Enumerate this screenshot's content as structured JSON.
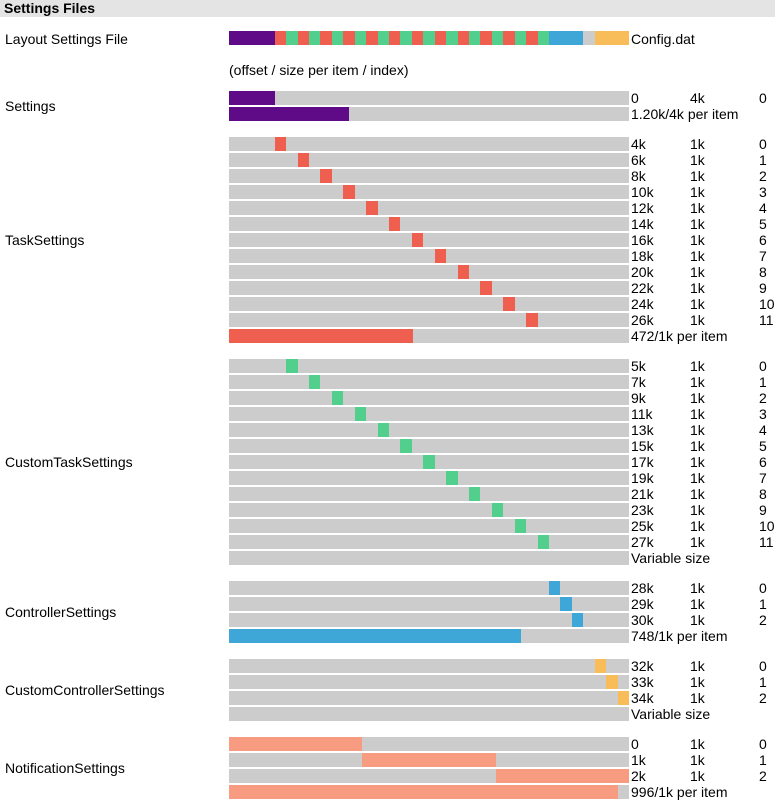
{
  "header": {
    "title": "Settings Files"
  },
  "layout_file": {
    "label": "Layout Settings File",
    "file_name": "Config.dat",
    "legend": "(offset / size per item / index)"
  },
  "colors": {
    "track": "#cccccc",
    "settings": "#5f0a87",
    "task": "#ef5f50",
    "custom_task": "#52cf8c",
    "controller": "#3fa7d8",
    "custom_controller": "#f8bd59",
    "notification": "#f79b81",
    "unused": "#cccccc"
  },
  "file_map": {
    "total_k": 35,
    "blocks": [
      {
        "start": 0,
        "size": 4,
        "color": "settings"
      },
      {
        "start": 4,
        "size": 1,
        "color": "task"
      },
      {
        "start": 5,
        "size": 1,
        "color": "custom_task"
      },
      {
        "start": 6,
        "size": 1,
        "color": "task"
      },
      {
        "start": 7,
        "size": 1,
        "color": "custom_task"
      },
      {
        "start": 8,
        "size": 1,
        "color": "task"
      },
      {
        "start": 9,
        "size": 1,
        "color": "custom_task"
      },
      {
        "start": 10,
        "size": 1,
        "color": "task"
      },
      {
        "start": 11,
        "size": 1,
        "color": "custom_task"
      },
      {
        "start": 12,
        "size": 1,
        "color": "task"
      },
      {
        "start": 13,
        "size": 1,
        "color": "custom_task"
      },
      {
        "start": 14,
        "size": 1,
        "color": "task"
      },
      {
        "start": 15,
        "size": 1,
        "color": "custom_task"
      },
      {
        "start": 16,
        "size": 1,
        "color": "task"
      },
      {
        "start": 17,
        "size": 1,
        "color": "custom_task"
      },
      {
        "start": 18,
        "size": 1,
        "color": "task"
      },
      {
        "start": 19,
        "size": 1,
        "color": "custom_task"
      },
      {
        "start": 20,
        "size": 1,
        "color": "task"
      },
      {
        "start": 21,
        "size": 1,
        "color": "custom_task"
      },
      {
        "start": 22,
        "size": 1,
        "color": "task"
      },
      {
        "start": 23,
        "size": 1,
        "color": "custom_task"
      },
      {
        "start": 24,
        "size": 1,
        "color": "task"
      },
      {
        "start": 25,
        "size": 1,
        "color": "custom_task"
      },
      {
        "start": 26,
        "size": 1,
        "color": "task"
      },
      {
        "start": 27,
        "size": 1,
        "color": "custom_task"
      },
      {
        "start": 28,
        "size": 1,
        "color": "controller"
      },
      {
        "start": 29,
        "size": 1,
        "color": "controller"
      },
      {
        "start": 30,
        "size": 1,
        "color": "controller"
      },
      {
        "start": 31,
        "size": 1,
        "color": "unused"
      },
      {
        "start": 32,
        "size": 3,
        "color": "custom_controller"
      }
    ]
  },
  "sections": [
    {
      "id": "settings",
      "label": "Settings",
      "color": "settings",
      "items": [
        {
          "start": 0,
          "size": 4,
          "offset": "0",
          "size_text": "4k",
          "index": "0"
        }
      ],
      "usage": {
        "used": 1.2,
        "total": 4,
        "text": "1.20k/4k per item"
      }
    },
    {
      "id": "task",
      "label": "TaskSettings",
      "color": "task",
      "items": [
        {
          "start": 4,
          "size": 1,
          "offset": "4k",
          "size_text": "1k",
          "index": "0"
        },
        {
          "start": 6,
          "size": 1,
          "offset": "6k",
          "size_text": "1k",
          "index": "1"
        },
        {
          "start": 8,
          "size": 1,
          "offset": "8k",
          "size_text": "1k",
          "index": "2"
        },
        {
          "start": 10,
          "size": 1,
          "offset": "10k",
          "size_text": "1k",
          "index": "3"
        },
        {
          "start": 12,
          "size": 1,
          "offset": "12k",
          "size_text": "1k",
          "index": "4"
        },
        {
          "start": 14,
          "size": 1,
          "offset": "14k",
          "size_text": "1k",
          "index": "5"
        },
        {
          "start": 16,
          "size": 1,
          "offset": "16k",
          "size_text": "1k",
          "index": "6"
        },
        {
          "start": 18,
          "size": 1,
          "offset": "18k",
          "size_text": "1k",
          "index": "7"
        },
        {
          "start": 20,
          "size": 1,
          "offset": "20k",
          "size_text": "1k",
          "index": "8"
        },
        {
          "start": 22,
          "size": 1,
          "offset": "22k",
          "size_text": "1k",
          "index": "9"
        },
        {
          "start": 24,
          "size": 1,
          "offset": "24k",
          "size_text": "1k",
          "index": "10"
        },
        {
          "start": 26,
          "size": 1,
          "offset": "26k",
          "size_text": "1k",
          "index": "11"
        }
      ],
      "usage": {
        "used": 0.461,
        "total": 1,
        "text": "472/1k per item"
      }
    },
    {
      "id": "custom_task",
      "label": "CustomTaskSettings",
      "color": "custom_task",
      "items": [
        {
          "start": 5,
          "size": 1,
          "offset": "5k",
          "size_text": "1k",
          "index": "0"
        },
        {
          "start": 7,
          "size": 1,
          "offset": "7k",
          "size_text": "1k",
          "index": "1"
        },
        {
          "start": 9,
          "size": 1,
          "offset": "9k",
          "size_text": "1k",
          "index": "2"
        },
        {
          "start": 11,
          "size": 1,
          "offset": "11k",
          "size_text": "1k",
          "index": "3"
        },
        {
          "start": 13,
          "size": 1,
          "offset": "13k",
          "size_text": "1k",
          "index": "4"
        },
        {
          "start": 15,
          "size": 1,
          "offset": "15k",
          "size_text": "1k",
          "index": "5"
        },
        {
          "start": 17,
          "size": 1,
          "offset": "17k",
          "size_text": "1k",
          "index": "6"
        },
        {
          "start": 19,
          "size": 1,
          "offset": "19k",
          "size_text": "1k",
          "index": "7"
        },
        {
          "start": 21,
          "size": 1,
          "offset": "21k",
          "size_text": "1k",
          "index": "8"
        },
        {
          "start": 23,
          "size": 1,
          "offset": "23k",
          "size_text": "1k",
          "index": "9"
        },
        {
          "start": 25,
          "size": 1,
          "offset": "25k",
          "size_text": "1k",
          "index": "10"
        },
        {
          "start": 27,
          "size": 1,
          "offset": "27k",
          "size_text": "1k",
          "index": "11"
        }
      ],
      "usage": {
        "used": 0,
        "total": 1,
        "text": "Variable size"
      }
    },
    {
      "id": "controller",
      "label": "ControllerSettings",
      "color": "controller",
      "items": [
        {
          "start": 28,
          "size": 1,
          "offset": "28k",
          "size_text": "1k",
          "index": "0"
        },
        {
          "start": 29,
          "size": 1,
          "offset": "29k",
          "size_text": "1k",
          "index": "1"
        },
        {
          "start": 30,
          "size": 1,
          "offset": "30k",
          "size_text": "1k",
          "index": "2"
        }
      ],
      "usage": {
        "used": 0.73,
        "total": 1,
        "text": "748/1k per item"
      }
    },
    {
      "id": "custom_controller",
      "label": "CustomControllerSettings",
      "color": "custom_controller",
      "items": [
        {
          "start": 32,
          "size": 1,
          "offset": "32k",
          "size_text": "1k",
          "index": "0"
        },
        {
          "start": 33,
          "size": 1,
          "offset": "33k",
          "size_text": "1k",
          "index": "1"
        },
        {
          "start": 34,
          "size": 1,
          "offset": "34k",
          "size_text": "1k",
          "index": "2"
        }
      ],
      "usage": {
        "used": 0,
        "total": 1,
        "text": "Variable size"
      }
    },
    {
      "id": "notification",
      "label": "NotificationSettings",
      "color": "notification",
      "map_total_k": 3,
      "items": [
        {
          "start": 0,
          "size": 1,
          "offset": "0",
          "size_text": "1k",
          "index": "0"
        },
        {
          "start": 1,
          "size": 1,
          "offset": "1k",
          "size_text": "1k",
          "index": "1"
        },
        {
          "start": 2,
          "size": 1,
          "offset": "2k",
          "size_text": "1k",
          "index": "2"
        }
      ],
      "usage": {
        "used": 0.973,
        "total": 1,
        "text": "996/1k per item"
      }
    }
  ]
}
